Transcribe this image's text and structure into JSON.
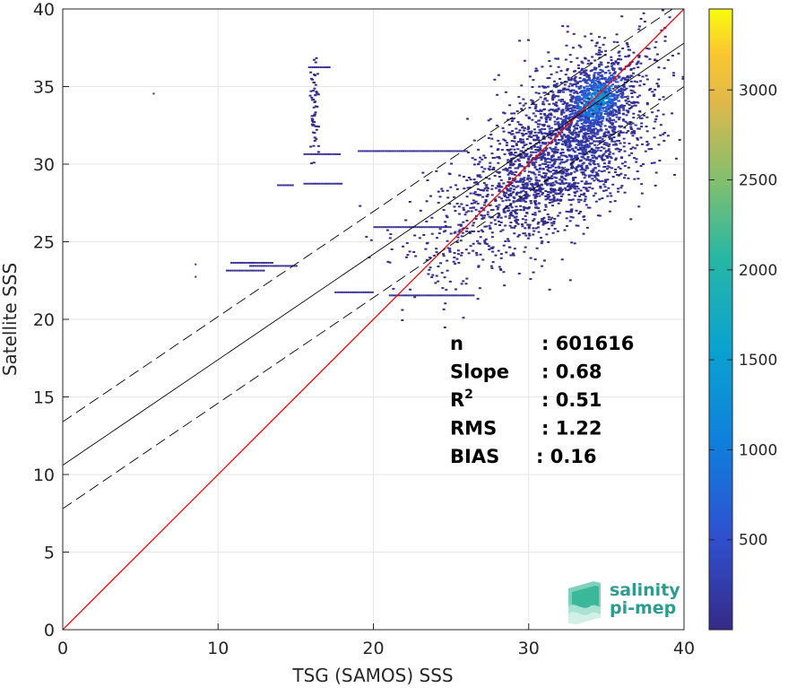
{
  "chart_data": {
    "type": "heatmap",
    "xlabel": "TSG (SAMOS) SSS",
    "ylabel": "Satellite SSS",
    "xlim": [
      0,
      40
    ],
    "ylim": [
      0,
      40
    ],
    "xticks": [
      0,
      10,
      20,
      30,
      40
    ],
    "yticks": [
      0,
      5,
      10,
      15,
      20,
      25,
      30,
      35,
      40
    ],
    "grid": true,
    "colormap": "parula",
    "colorbar": {
      "min": 0,
      "max": 3450,
      "ticks": [
        500,
        1000,
        1500,
        2000,
        2500,
        3000
      ],
      "position": "right"
    },
    "lines": [
      {
        "kind": "identity",
        "color": "#ff0000",
        "x": [
          0,
          40
        ],
        "y": [
          0,
          40
        ]
      },
      {
        "kind": "regression",
        "color": "#000000",
        "style": "solid",
        "x": [
          0,
          40
        ],
        "y": [
          10.6,
          37.8
        ]
      },
      {
        "kind": "regression-upper",
        "color": "#000000",
        "style": "dashed",
        "x": [
          0,
          40
        ],
        "y": [
          13.4,
          40.5
        ]
      },
      {
        "kind": "regression-lower",
        "color": "#000000",
        "style": "dashed",
        "x": [
          0,
          40
        ],
        "y": [
          7.8,
          35.0
        ]
      }
    ],
    "clusters": [
      {
        "cx": 33.0,
        "cy": 32.0,
        "sx": 2.6,
        "sy": 2.6,
        "n": 1700,
        "level": 250
      },
      {
        "cx": 34.3,
        "cy": 34.2,
        "sx": 1.0,
        "sy": 1.1,
        "n": 700,
        "level": 1200
      },
      {
        "cx": 30.0,
        "cy": 29.0,
        "sx": 2.4,
        "sy": 1.8,
        "n": 600,
        "level": 120
      },
      {
        "cx": 26.5,
        "cy": 26.0,
        "sx": 3.0,
        "sy": 2.2,
        "n": 260,
        "level": 60
      },
      {
        "cx": 16.1,
        "cy": 33.5,
        "sx": 0.15,
        "sy": 1.6,
        "n": 60,
        "level": 80
      }
    ],
    "streaks": [
      {
        "x0": 21.0,
        "x1": 26.5,
        "y": 21.6,
        "level": 60
      },
      {
        "x0": 17.5,
        "x1": 20.0,
        "y": 21.8,
        "level": 60
      },
      {
        "x0": 10.8,
        "x1": 13.5,
        "y": 23.7,
        "level": 60
      },
      {
        "x0": 10.5,
        "x1": 13.0,
        "y": 23.2,
        "level": 60
      },
      {
        "x0": 12.0,
        "x1": 15.0,
        "y": 23.5,
        "level": 60
      },
      {
        "x0": 15.5,
        "x1": 18.0,
        "y": 28.8,
        "level": 60
      },
      {
        "x0": 13.8,
        "x1": 14.8,
        "y": 28.7,
        "level": 60
      },
      {
        "x0": 15.5,
        "x1": 17.8,
        "y": 30.7,
        "level": 60
      },
      {
        "x0": 19.0,
        "x1": 26.0,
        "y": 30.9,
        "level": 60
      },
      {
        "x0": 20.0,
        "x1": 25.0,
        "y": 26.0,
        "level": 60
      },
      {
        "x0": 15.8,
        "x1": 17.2,
        "y": 36.3,
        "level": 60
      },
      {
        "x0": 5.8,
        "x1": 5.9,
        "y": 34.6,
        "level": 60
      },
      {
        "x0": 8.5,
        "x1": 8.6,
        "y": 23.6,
        "level": 60
      },
      {
        "x0": 8.5,
        "x1": 8.6,
        "y": 22.8,
        "level": 60
      }
    ],
    "stats": [
      {
        "label": "n",
        "value": ": 601616"
      },
      {
        "label": "Slope",
        "value": ": 0.68"
      },
      {
        "label": "R",
        "sup": "2",
        "value": ": 0.51"
      },
      {
        "label": "RMS",
        "value": ": 1.22"
      },
      {
        "label": "BIAS",
        "value": ": 0.16"
      }
    ]
  },
  "logo": {
    "line1": "salinity",
    "line2": "pi-mep"
  }
}
